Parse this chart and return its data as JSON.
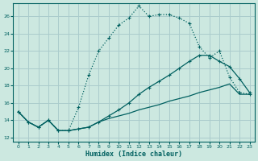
{
  "xlabel": "Humidex (Indice chaleur)",
  "bg_color": "#cce8e0",
  "grid_color": "#aacccc",
  "line_color": "#006060",
  "xlim": [
    -0.5,
    23.5
  ],
  "ylim": [
    11.5,
    27.5
  ],
  "yticks": [
    12,
    14,
    16,
    18,
    20,
    22,
    24,
    26
  ],
  "xticks": [
    0,
    1,
    2,
    3,
    4,
    5,
    6,
    7,
    8,
    9,
    10,
    11,
    12,
    13,
    14,
    15,
    16,
    17,
    18,
    19,
    20,
    21,
    22,
    23
  ],
  "line1_x": [
    0,
    1,
    2,
    3,
    4,
    5,
    6,
    7,
    8,
    9,
    10,
    11,
    12,
    13,
    14,
    15,
    16,
    17,
    18,
    19,
    20,
    21,
    22,
    23
  ],
  "line1_y": [
    15.0,
    13.8,
    13.2,
    14.0,
    12.8,
    12.8,
    15.5,
    19.2,
    22.0,
    23.5,
    25.0,
    25.8,
    27.2,
    26.0,
    26.2,
    26.2,
    25.8,
    25.2,
    22.5,
    21.2,
    22.0,
    19.0,
    17.2,
    17.0
  ],
  "line2_x": [
    0,
    1,
    2,
    3,
    4,
    5,
    6,
    7,
    8,
    9,
    10,
    11,
    12,
    13,
    14,
    15,
    16,
    17,
    18,
    19,
    20,
    21,
    22,
    23
  ],
  "line2_y": [
    15.0,
    13.8,
    13.2,
    14.0,
    12.8,
    12.8,
    13.0,
    13.2,
    13.8,
    14.5,
    15.2,
    16.0,
    17.0,
    17.8,
    18.5,
    19.2,
    20.0,
    20.8,
    21.5,
    21.5,
    20.8,
    20.2,
    18.8,
    17.2
  ],
  "line3_x": [
    0,
    1,
    2,
    3,
    4,
    5,
    6,
    7,
    8,
    9,
    10,
    11,
    12,
    13,
    14,
    15,
    16,
    17,
    18,
    19,
    20,
    21,
    22,
    23
  ],
  "line3_y": [
    15.0,
    13.8,
    13.2,
    14.0,
    12.8,
    12.8,
    13.0,
    13.2,
    13.8,
    14.2,
    14.5,
    14.8,
    15.2,
    15.5,
    15.8,
    16.2,
    16.5,
    16.8,
    17.2,
    17.5,
    17.8,
    18.2,
    17.0,
    17.0
  ]
}
